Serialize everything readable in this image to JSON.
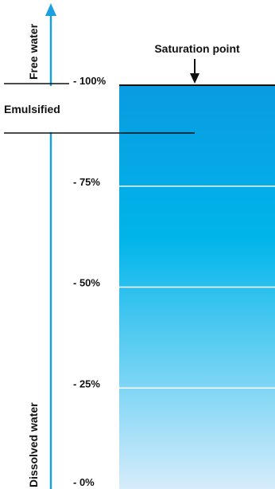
{
  "labels": {
    "free_water": "Free water",
    "dissolved_water": "Dissolved water",
    "emulsified": "Emulsified",
    "saturation_point": "Saturation point"
  },
  "ticks": [
    {
      "value": 100,
      "label": "- 100%"
    },
    {
      "value": 75,
      "label": "- 75%"
    },
    {
      "value": 50,
      "label": "- 50%"
    },
    {
      "value": 25,
      "label": "- 25%"
    },
    {
      "value": 0,
      "label": "- 0%"
    }
  ],
  "colors": {
    "axis_arrow": "#1a9fe0",
    "fill_top": "#0a9be0",
    "fill_mid": "#00b5ea",
    "fill_bottom": "#d6ecfb",
    "lines": "#111111",
    "gridlines": "#ffffff"
  },
  "icons": {
    "axis_arrow": "up-arrow-icon",
    "saturation_arrow": "down-arrow-icon"
  }
}
